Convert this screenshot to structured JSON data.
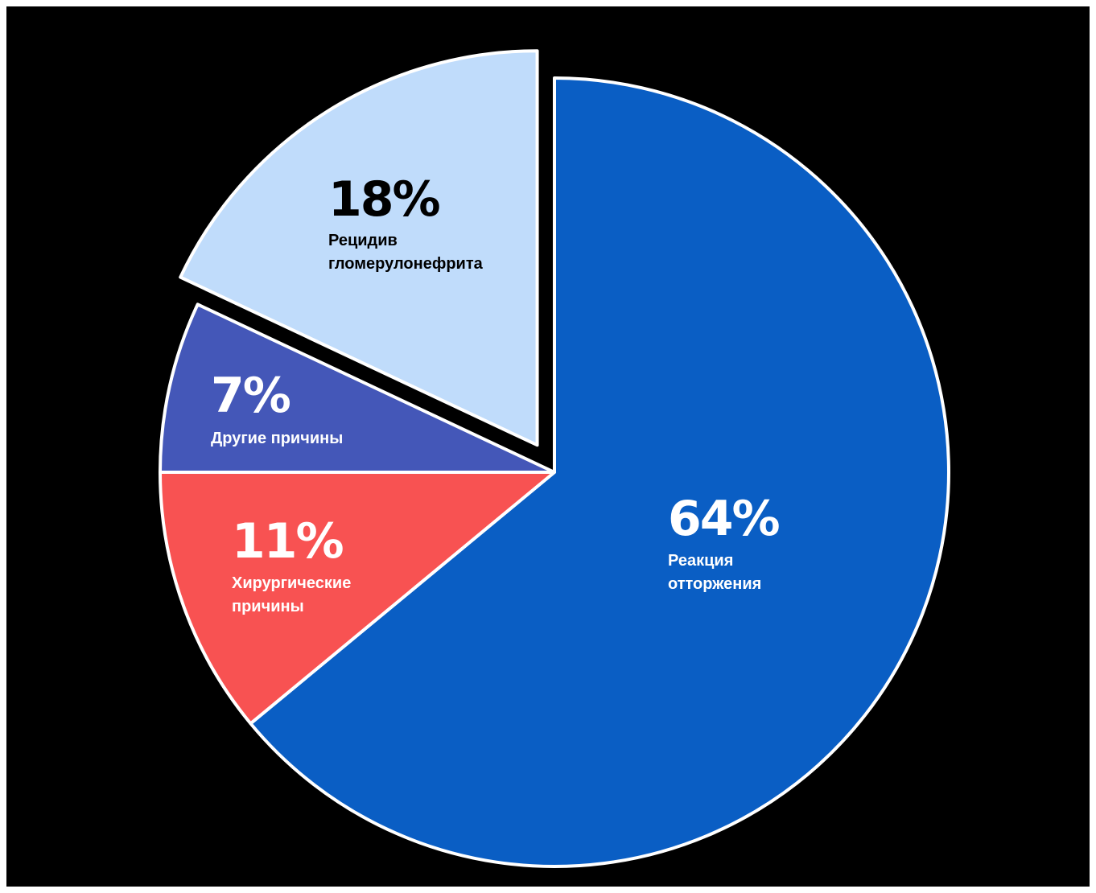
{
  "chart_data": {
    "type": "pie",
    "title": "",
    "colors": {
      "background": "#000000",
      "border": "#ffffff"
    },
    "slices": [
      {
        "value": 64,
        "label": "64%",
        "name_lines": [
          "Реакция",
          "отторжения"
        ],
        "color": "#0a5ec4",
        "text_color": "#ffffff",
        "exploded": false
      },
      {
        "value": 11,
        "label": "11%",
        "name_lines": [
          "Хирургические",
          "причины"
        ],
        "color": "#f85252",
        "text_color": "#ffffff",
        "exploded": false
      },
      {
        "value": 7,
        "label": "7%",
        "name_lines": [
          "Другие причины"
        ],
        "color": "#4457b8",
        "text_color": "#ffffff",
        "exploded": false
      },
      {
        "value": 18,
        "label": "18%",
        "name_lines": [
          "Рецидив",
          "гломерулонефрита"
        ],
        "color": "#c0dcfb",
        "text_color": "#000000",
        "exploded": true
      }
    ]
  }
}
